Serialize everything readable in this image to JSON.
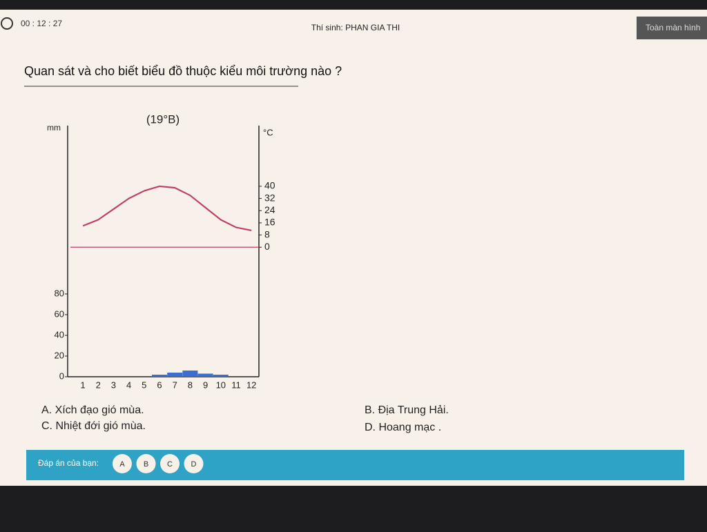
{
  "header": {
    "timer": "00 : 12 : 27",
    "candidate": "Thí sinh: PHAN GIA THI",
    "fullscreen_button": "Toàn màn hình"
  },
  "question": "Quan sát và cho biết biểu đồ thuộc kiểu môi trường nào ?",
  "chart_data": {
    "type": "climate",
    "title": "(19°B)",
    "y_label": "mm",
    "y2_label": "°C",
    "categories": [
      "1",
      "2",
      "3",
      "4",
      "5",
      "6",
      "7",
      "8",
      "9",
      "10",
      "11",
      "12"
    ],
    "series": [
      {
        "type": "bar",
        "color": "#3a6fd0",
        "values": [
          0,
          0,
          0,
          0,
          0,
          2,
          4,
          6,
          3,
          2,
          0,
          0
        ]
      },
      {
        "type": "line",
        "axis": "y2",
        "color": "#c0406a",
        "values": [
          14,
          18,
          25,
          32,
          37,
          40,
          39,
          34,
          26,
          18,
          13,
          11
        ]
      }
    ],
    "ylim": [
      0,
      240
    ],
    "yticks": [
      0,
      20,
      40,
      60,
      80
    ],
    "y2lim": [
      -85,
      78
    ],
    "y2ticks": [
      0,
      8,
      16,
      24,
      32,
      40
    ]
  },
  "options": [
    "A. Xích đạo gió mùa.",
    "B. Địa Trung Hải.",
    "C. Nhiệt đới gió mùa.",
    "D. Hoang mạc ."
  ],
  "answer_bar": {
    "label": "Đáp án của bạn:",
    "choices": [
      "A",
      "B",
      "C",
      "D"
    ]
  }
}
